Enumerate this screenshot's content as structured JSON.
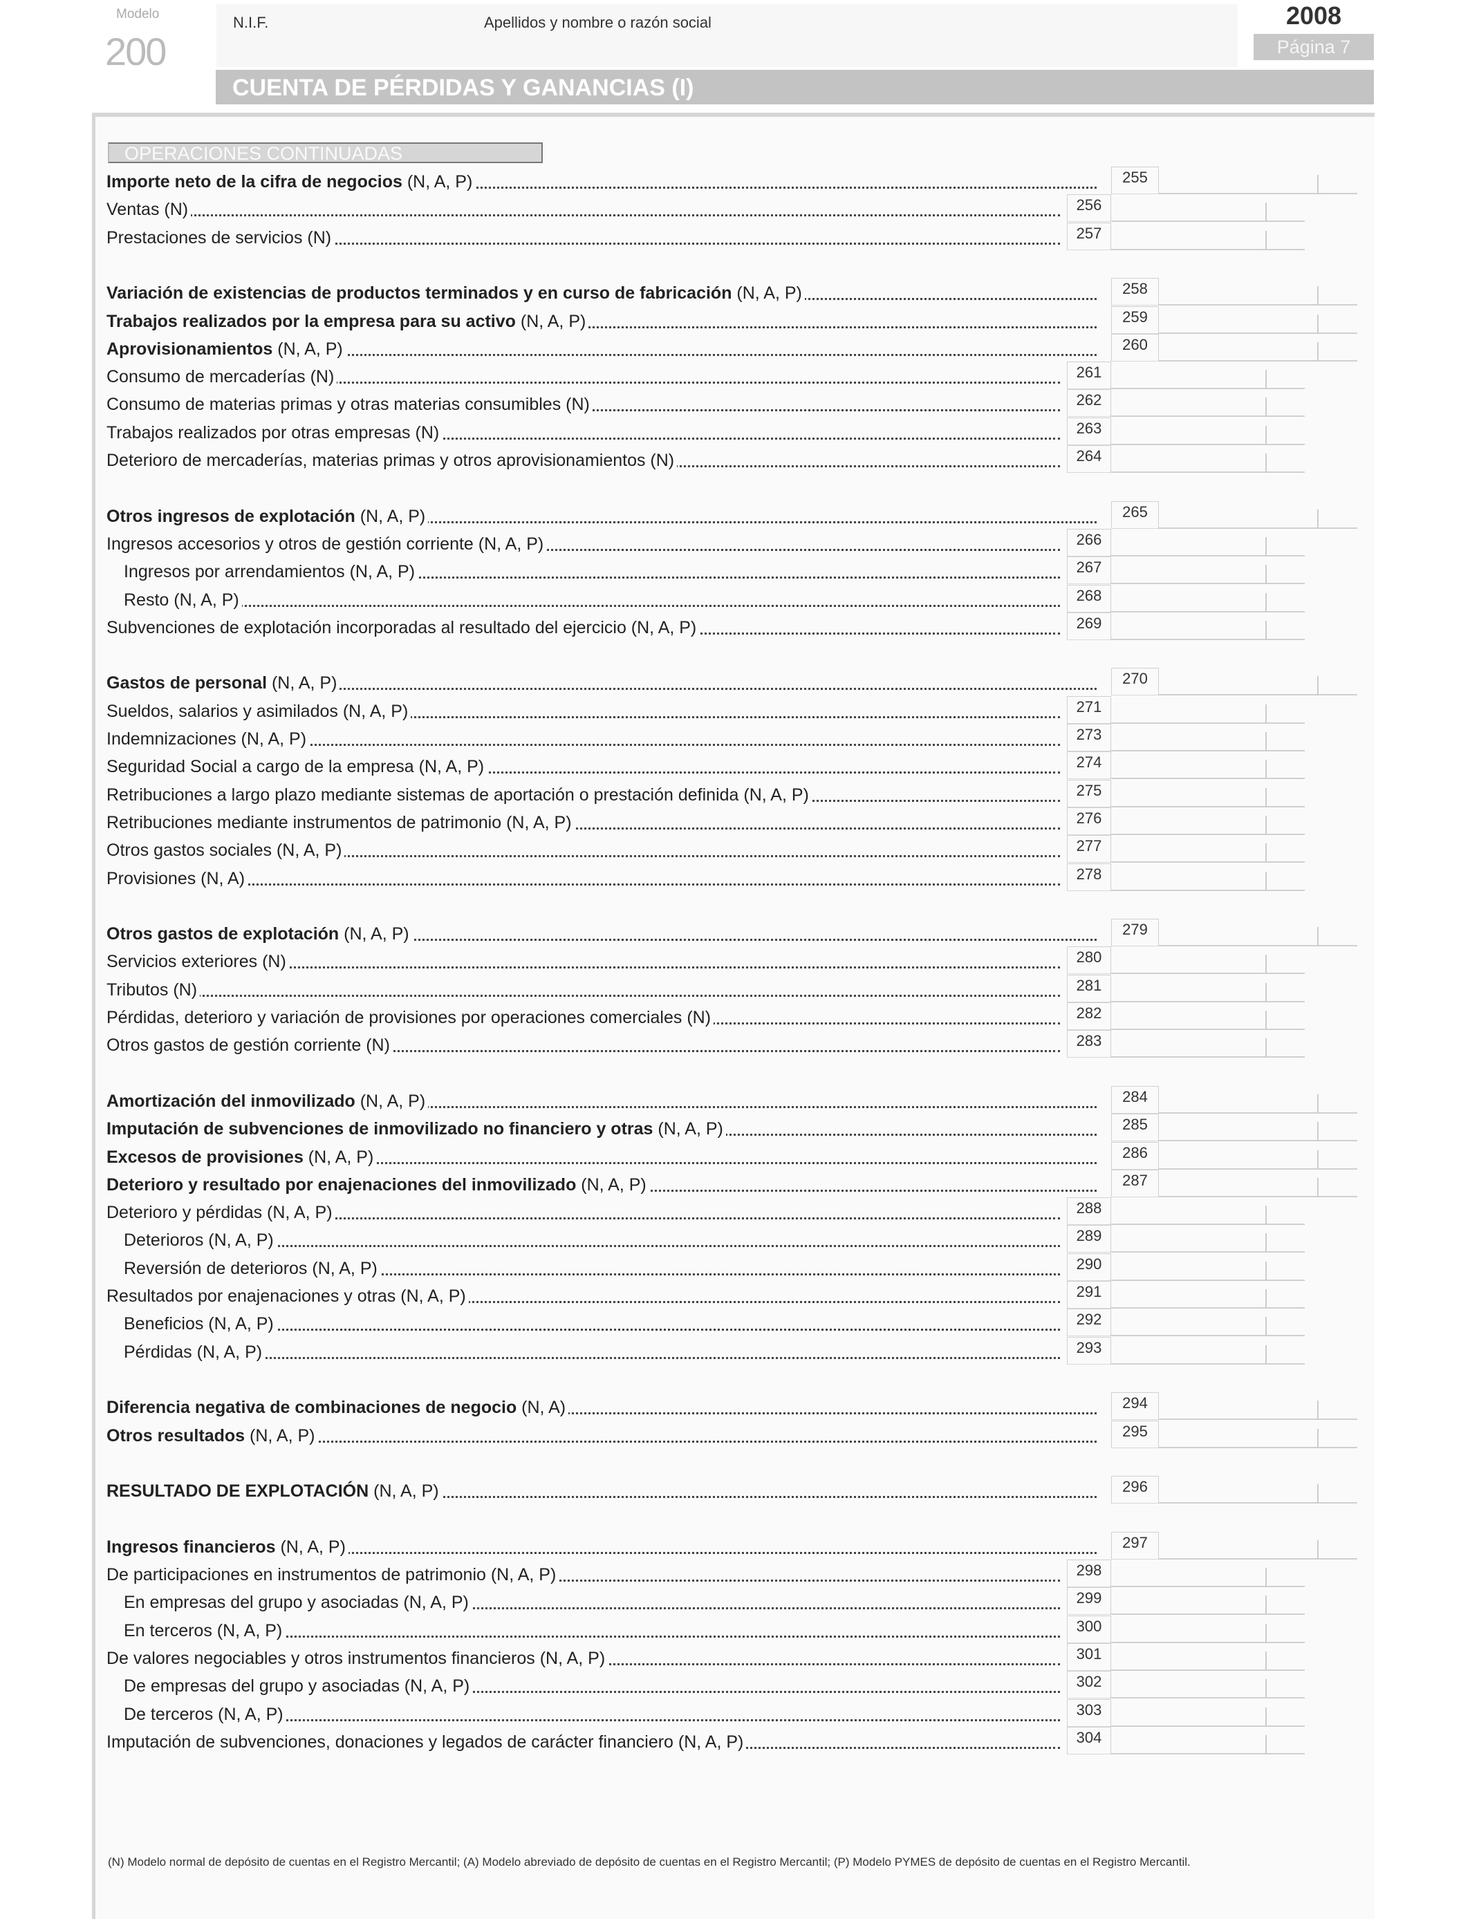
{
  "header": {
    "modelo_label": "Modelo",
    "modelo_number": "200",
    "nif_label": "N.I.F.",
    "name_label": "Apellidos y nombre o razón social",
    "year": "2008",
    "page": "Página 7",
    "title": "CUENTA DE PÉRDIDAS Y GANANCIAS (I)"
  },
  "section": "OPERACIONES CONTINUADAS",
  "items": [
    {
      "bold": "Importe neto de la cifra de negocios",
      "text": " (N, A, P)",
      "code": "255",
      "col": "main",
      "indent": 0
    },
    {
      "bold": "",
      "text": "Ventas (N)",
      "code": "256",
      "col": "sub",
      "indent": 0
    },
    {
      "bold": "",
      "text": "Prestaciones de servicios (N)",
      "code": "257",
      "col": "sub",
      "indent": 0
    },
    {
      "gap": true
    },
    {
      "bold": "Variación de existencias de productos terminados y en curso de fabricación",
      "text": " (N, A, P)",
      "code": "258",
      "col": "main",
      "indent": 0
    },
    {
      "bold": "Trabajos realizados por la empresa para su activo",
      "text": " (N, A, P)",
      "code": "259",
      "col": "main",
      "indent": 0
    },
    {
      "bold": "Aprovisionamientos",
      "text": " (N, A, P)",
      "code": "260",
      "col": "main",
      "indent": 0
    },
    {
      "bold": "",
      "text": "Consumo de mercaderías (N)",
      "code": "261",
      "col": "sub",
      "indent": 0
    },
    {
      "bold": "",
      "text": "Consumo de materias primas y otras materias consumibles (N)",
      "code": "262",
      "col": "sub",
      "indent": 0
    },
    {
      "bold": "",
      "text": "Trabajos realizados por otras empresas (N)",
      "code": "263",
      "col": "sub",
      "indent": 0
    },
    {
      "bold": "",
      "text": "Deterioro de mercaderías, materias primas y otros aprovisionamientos (N)",
      "code": "264",
      "col": "sub",
      "indent": 0
    },
    {
      "gap": true
    },
    {
      "bold": "Otros ingresos de explotación",
      "text": " (N, A, P)",
      "code": "265",
      "col": "main",
      "indent": 0
    },
    {
      "bold": "",
      "text": "Ingresos accesorios y otros de gestión corriente (N, A, P)",
      "code": "266",
      "col": "sub",
      "indent": 0
    },
    {
      "bold": "",
      "text": "Ingresos por arrendamientos (N, A, P)",
      "code": "267",
      "col": "sub",
      "indent": 1
    },
    {
      "bold": "",
      "text": "Resto (N, A, P)",
      "code": "268",
      "col": "sub",
      "indent": 1
    },
    {
      "bold": "",
      "text": "Subvenciones de explotación incorporadas al resultado del ejercicio (N, A, P)",
      "code": "269",
      "col": "sub",
      "indent": 0
    },
    {
      "gap": true
    },
    {
      "bold": "Gastos de personal",
      "text": " (N, A, P)",
      "code": "270",
      "col": "main",
      "indent": 0
    },
    {
      "bold": "",
      "text": "Sueldos, salarios y asimilados (N, A, P)",
      "code": "271",
      "col": "sub",
      "indent": 0
    },
    {
      "bold": "",
      "text": "Indemnizaciones (N, A, P)",
      "code": "273",
      "col": "sub",
      "indent": 0
    },
    {
      "bold": "",
      "text": "Seguridad Social a cargo de la empresa (N, A, P)",
      "code": "274",
      "col": "sub",
      "indent": 0
    },
    {
      "bold": "",
      "text": "Retribuciones a largo plazo mediante sistemas de aportación o prestación definida (N, A, P)",
      "code": "275",
      "col": "sub",
      "indent": 0
    },
    {
      "bold": "",
      "text": "Retribuciones mediante instrumentos de patrimonio (N, A, P)",
      "code": "276",
      "col": "sub",
      "indent": 0
    },
    {
      "bold": "",
      "text": "Otros gastos sociales (N, A, P)",
      "code": "277",
      "col": "sub",
      "indent": 0
    },
    {
      "bold": "",
      "text": "Provisiones (N, A)",
      "code": "278",
      "col": "sub",
      "indent": 0
    },
    {
      "gap": true
    },
    {
      "bold": "Otros gastos de explotación",
      "text": " (N, A, P)",
      "code": "279",
      "col": "main",
      "indent": 0
    },
    {
      "bold": "",
      "text": "Servicios exteriores (N)",
      "code": "280",
      "col": "sub",
      "indent": 0
    },
    {
      "bold": "",
      "text": "Tributos (N)",
      "code": "281",
      "col": "sub",
      "indent": 0
    },
    {
      "bold": "",
      "text": "Pérdidas, deterioro y variación de provisiones por operaciones comerciales (N)",
      "code": "282",
      "col": "sub",
      "indent": 0
    },
    {
      "bold": "",
      "text": "Otros gastos de gestión corriente (N)",
      "code": "283",
      "col": "sub",
      "indent": 0
    },
    {
      "gap": true
    },
    {
      "bold": "Amortización del inmovilizado",
      "text": " (N, A, P)",
      "code": "284",
      "col": "main",
      "indent": 0
    },
    {
      "bold": "Imputación de subvenciones de inmovilizado no financiero y otras",
      "text": " (N, A, P)",
      "code": "285",
      "col": "main",
      "indent": 0
    },
    {
      "bold": "Excesos de provisiones",
      "text": " (N, A, P)",
      "code": "286",
      "col": "main",
      "indent": 0
    },
    {
      "bold": "Deterioro y resultado por enajenaciones del inmovilizado",
      "text": " (N, A, P)",
      "code": "287",
      "col": "main",
      "indent": 0
    },
    {
      "bold": "",
      "text": "Deterioro y pérdidas (N, A, P)",
      "code": "288",
      "col": "sub",
      "indent": 0
    },
    {
      "bold": "",
      "text": "Deterioros (N, A, P)",
      "code": "289",
      "col": "sub",
      "indent": 1
    },
    {
      "bold": "",
      "text": "Reversión de deterioros (N, A, P)",
      "code": "290",
      "col": "sub",
      "indent": 1
    },
    {
      "bold": "",
      "text": "Resultados por enajenaciones y otras (N, A, P)",
      "code": "291",
      "col": "sub",
      "indent": 0
    },
    {
      "bold": "",
      "text": "Beneficios (N, A, P)",
      "code": "292",
      "col": "sub",
      "indent": 1
    },
    {
      "bold": "",
      "text": "Pérdidas (N, A, P)",
      "code": "293",
      "col": "sub",
      "indent": 1
    },
    {
      "gap": true
    },
    {
      "bold": "Diferencia negativa de combinaciones de negocio",
      "text": " (N, A)",
      "code": "294",
      "col": "main",
      "indent": 0
    },
    {
      "bold": "Otros resultados",
      "text": " (N, A, P)",
      "code": "295",
      "col": "main",
      "indent": 0
    },
    {
      "gap": true
    },
    {
      "bold": "RESULTADO DE EXPLOTACIÓN",
      "text": " (N, A, P)",
      "code": "296",
      "col": "main",
      "indent": 0
    },
    {
      "gap": true
    },
    {
      "bold": "Ingresos financieros",
      "text": " (N, A, P)",
      "code": "297",
      "col": "main",
      "indent": 0
    },
    {
      "bold": "",
      "text": "De participaciones en instrumentos de patrimonio (N, A, P)",
      "code": "298",
      "col": "sub",
      "indent": 0
    },
    {
      "bold": "",
      "text": "En empresas del grupo y asociadas (N, A, P)",
      "code": "299",
      "col": "sub",
      "indent": 1
    },
    {
      "bold": "",
      "text": "En terceros (N, A, P)",
      "code": "300",
      "col": "sub",
      "indent": 1
    },
    {
      "bold": "",
      "text": "De valores negociables y otros instrumentos financieros (N, A, P)",
      "code": "301",
      "col": "sub",
      "indent": 0
    },
    {
      "bold": "",
      "text": "De empresas del grupo y asociadas (N, A, P)",
      "code": "302",
      "col": "sub",
      "indent": 1
    },
    {
      "bold": "",
      "text": "De terceros (N, A, P)",
      "code": "303",
      "col": "sub",
      "indent": 1
    },
    {
      "bold": "",
      "text": "Imputación de subvenciones, donaciones y legados de carácter financiero (N, A, P)",
      "code": "304",
      "col": "sub",
      "indent": 0
    }
  ],
  "footnote": "(N)  Modelo normal de depósito de cuentas en el Registro Mercantil; (A) Modelo abreviado de depósito de cuentas en el Registro Mercantil; (P) Modelo PYMES de depósito de cuentas en el Registro Mercantil."
}
